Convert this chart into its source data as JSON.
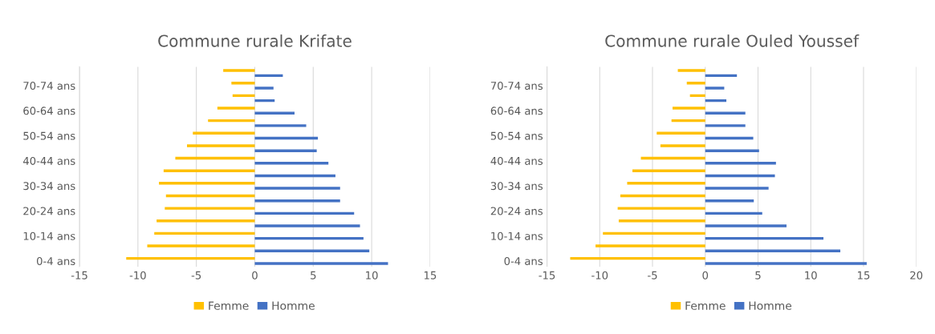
{
  "chart_data": [
    {
      "type": "bar",
      "orientation": "horizontal",
      "title": "Commune rurale Krifate",
      "categories": [
        null,
        "70-74 ans",
        null,
        "60-64 ans",
        null,
        "50-54 ans",
        null,
        "40-44 ans",
        null,
        "30-34 ans",
        null,
        "20-24 ans",
        null,
        "10-14 ans",
        null,
        "0-4 ans"
      ],
      "series": [
        {
          "name": "Femme",
          "color": "#ffc000",
          "values": [
            -2.7,
            -2.0,
            -1.9,
            -3.2,
            -4.0,
            -5.3,
            -5.8,
            -6.8,
            -7.8,
            -8.2,
            -7.6,
            -7.7,
            -8.4,
            -8.6,
            -9.2,
            -11.0
          ]
        },
        {
          "name": "Homme",
          "color": "#4472c4",
          "values": [
            2.4,
            1.6,
            1.7,
            3.4,
            4.4,
            5.4,
            5.3,
            6.3,
            6.9,
            7.3,
            7.3,
            8.5,
            9.0,
            9.3,
            9.8,
            11.4
          ]
        }
      ],
      "xlim": [
        -15,
        15
      ],
      "xticks": [
        -15,
        -10,
        -5,
        0,
        5,
        10,
        15
      ],
      "grid": "x",
      "legend": "bottom"
    },
    {
      "type": "bar",
      "orientation": "horizontal",
      "title": "Commune rurale Ouled Youssef",
      "categories": [
        null,
        "70-74 ans",
        null,
        "60-64 ans",
        null,
        "50-54 ans",
        null,
        "40-44 ans",
        null,
        "30-34 ans",
        null,
        "20-24 ans",
        null,
        "10-14 ans",
        null,
        "0-4 ans"
      ],
      "series": [
        {
          "name": "Femme",
          "color": "#ffc000",
          "values": [
            -2.6,
            -1.75,
            -1.45,
            -3.1,
            -3.2,
            -4.6,
            -4.25,
            -6.1,
            -6.9,
            -7.4,
            -8.05,
            -8.3,
            -8.2,
            -9.7,
            -10.4,
            -12.8
          ]
        },
        {
          "name": "Homme",
          "color": "#4472c4",
          "values": [
            3.0,
            1.8,
            2.0,
            3.8,
            3.8,
            4.55,
            5.1,
            6.7,
            6.6,
            6.0,
            4.6,
            5.4,
            7.7,
            11.2,
            12.8,
            15.3
          ]
        }
      ],
      "xlim": [
        -15,
        20
      ],
      "xticks": [
        -15,
        -10,
        -5,
        0,
        5,
        10,
        15,
        20
      ],
      "grid": "x",
      "legend": "bottom"
    }
  ]
}
